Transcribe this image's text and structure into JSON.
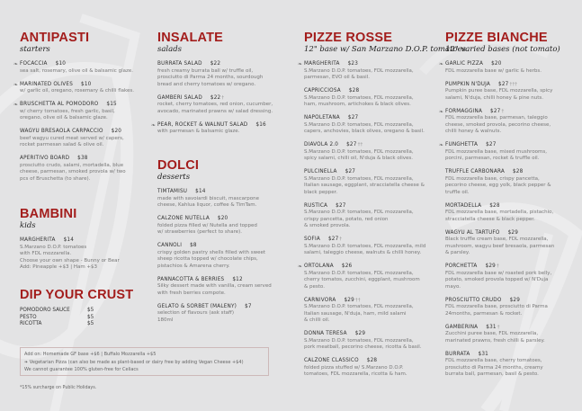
{
  "colors": {
    "accent": "#a31d1c",
    "background": "#e3e3e4",
    "text": "#333333",
    "muted": "#777777"
  },
  "icons": {
    "vegetarian": "leaf-icon",
    "spicy": "chilli-icon"
  },
  "sections": [
    {
      "id": "antipasti",
      "title": "ANTIPASTI",
      "subtitle": "starters",
      "items": [
        {
          "name": "FOCACCIA",
          "price": "$10",
          "veg": true,
          "chilli": 0,
          "desc": [
            "sea salt, rosemary, olive oil & balsamic glaze."
          ]
        },
        {
          "name": "MARINATED OLIVES",
          "price": "$10",
          "veg": true,
          "chilli": 0,
          "desc": [
            "w/ garlic oil, oregano, rosemary & chilli flakes."
          ]
        },
        {
          "name": "BRUSCHETTA AL POMODORO",
          "price": "$15",
          "veg": true,
          "chilli": 0,
          "desc": [
            "w/ cherry tomatoes, fresh garlic, basil,",
            "oregano, olive oil & balsamic glaze."
          ]
        },
        {
          "name": "WAGYU BRESAOLA CARPACCIO",
          "price": "$20",
          "veg": false,
          "chilli": 0,
          "desc": [
            "beef wagyu cured meat served w/ capers,",
            "rocket parmesan salad & olive oil."
          ]
        },
        {
          "name": "APERITIVO BOARD",
          "price": "$38",
          "veg": false,
          "chilli": 0,
          "desc": [
            "prosciutto crudo, salami, mortadella, blue",
            "cheese, parmesan, smoked provola w/ two",
            "pcs of Bruschetta (to share)."
          ]
        }
      ]
    },
    {
      "id": "bambini",
      "title": "BAMBINI",
      "subtitle": "kids",
      "items": [
        {
          "name": "MARGHERITA",
          "price": "$14",
          "veg": false,
          "chilli": 0,
          "desc": [
            "S.Marzano D.O.P. tomatoes",
            "with FDL mozzarella.",
            "Choose your own shape - Bunny or Bear",
            "Add: Pineapple +$3 | Ham +$3"
          ]
        }
      ]
    },
    {
      "id": "insalate",
      "title": "INSALATE",
      "subtitle": "salads",
      "items": [
        {
          "name": "BURRATA SALAD",
          "price": "$22",
          "veg": false,
          "chilli": 0,
          "desc": [
            "fresh creamy burrata ball w/ truffle oil,",
            "prosciutto di Parma 24 months, sourdough",
            "bread and cherry tomatoes w/ oregano."
          ]
        },
        {
          "name": "GAMBERI SALAD",
          "price": "$22",
          "veg": false,
          "chilli": 1,
          "desc": [
            "rocket, cherry tomatoes, red onion, cucumber,",
            "avocado, marinated prawns w/ salad dressing."
          ]
        },
        {
          "name": "PEAR, ROCKET & WALNUT SALAD",
          "price": "$16",
          "veg": true,
          "chilli": 0,
          "desc": [
            "with parmesan & balsamic glaze."
          ]
        }
      ]
    },
    {
      "id": "dolci",
      "title": "DOLCI",
      "subtitle": "desserts",
      "items": [
        {
          "name": "TIMTAMISU",
          "price": "$14",
          "veg": false,
          "chilli": 0,
          "desc": [
            "made with savoiardi biscuit, mascarpone",
            "cheese, Kahlua liquor, coffee & TimTam."
          ]
        },
        {
          "name": "CALZONE NUTELLA",
          "price": "$20",
          "veg": false,
          "chilli": 0,
          "desc": [
            "folded pizza filled w/ Nutella and topped",
            "w/ strawberries (perfect to share)."
          ]
        },
        {
          "name": "CANNOLI",
          "price": "$8",
          "veg": false,
          "chilli": 0,
          "desc": [
            "crispy golden pastry shells filled with sweet",
            "sheep ricotta topped w/ chocolate chips,",
            "pistachios & Amarena cherry."
          ]
        },
        {
          "name": "PANNACOTTA & BERRIES",
          "price": "$12",
          "veg": false,
          "chilli": 0,
          "desc": [
            "Silky dessert made with vanilla, cream served",
            "with fresh berries compote."
          ]
        },
        {
          "name": "GELATO & SORBET (MALENY)",
          "price": "$7",
          "veg": false,
          "chilli": 0,
          "desc": [
            "selection of flavours (ask staff)",
            "180ml"
          ]
        }
      ]
    },
    {
      "id": "rosse",
      "title": "PIZZE ROSSE",
      "subtitle": "12\" base w/ San Marzano D.O.P. tomatoes",
      "items": [
        {
          "name": "MARGHERITA",
          "price": "$23",
          "veg": true,
          "chilli": 0,
          "desc": [
            "S.Marzano D.O.P. tomatoes, FDL mozzarella,",
            "parmesan, EVO oil & basil."
          ]
        },
        {
          "name": "CAPRICCIOSA",
          "price": "$28",
          "veg": false,
          "chilli": 0,
          "desc": [
            "S.Marzano D.O.P. tomatoes, FDL mozzarella,",
            "ham, mushroom, artichokes & black olives."
          ]
        },
        {
          "name": "NAPOLETANA",
          "price": "$27",
          "veg": false,
          "chilli": 0,
          "desc": [
            "S.Marzano D.O.P. tomatoes, FDL mozzarella,",
            "capers, anchovies, black olives, oregano & basil."
          ]
        },
        {
          "name": "DIAVOLA 2.0",
          "price": "$27",
          "veg": false,
          "chilli": 2,
          "desc": [
            "S.Marzano D.O.P. tomatoes, FDL mozzarella,",
            "spicy salami, chilli oil, N'duja & black olives."
          ]
        },
        {
          "name": "PULCINELLA",
          "price": "$27",
          "veg": false,
          "chilli": 0,
          "desc": [
            "S.Marzano D.O.P. tomatoes, FDL mozzarella,",
            "Italian sausage, eggplant, stracciatella cheese &",
            "black pepper."
          ]
        },
        {
          "name": "RUSTICA",
          "price": "$27",
          "veg": false,
          "chilli": 0,
          "desc": [
            "S.Marzano D.O.P. tomatoes, FDL mozzarella,",
            "crispy pancetta, potato, red onion",
            "& smoked provola."
          ]
        },
        {
          "name": "SOFIA",
          "price": "$27",
          "veg": false,
          "chilli": 1,
          "desc": [
            "S.Marzano D.O.P. tomatoes, FDL mozzarella, mild",
            "salami, taleggio cheese, walnuts & chilli honey."
          ]
        },
        {
          "name": "ORTOLANA",
          "price": "$26",
          "veg": true,
          "chilli": 0,
          "desc": [
            "S.Marzano D.O.P. tomatoes, FDL mozzarella,",
            "cherry tomatos, zucchini, eggplant, mushroom",
            "& pesto."
          ]
        },
        {
          "name": "CARNIVORA",
          "price": "$29",
          "veg": false,
          "chilli": 2,
          "desc": [
            "S.Marzano D.O.P. tomatoes, FDL mozzarella,",
            "Italian sausage, N'duja, ham, mild salami",
            "& chilli oil."
          ]
        },
        {
          "name": "DONNA TERESA",
          "price": "$29",
          "veg": false,
          "chilli": 0,
          "desc": [
            "S.Marzano D.O.P. tomatoes, FDL mozzarella,",
            "pork meatball, pecorino cheese, ricotta & basil."
          ]
        },
        {
          "name": "CALZONE CLASSICO",
          "price": "$28",
          "veg": false,
          "chilli": 0,
          "desc": [
            "folded pizza stuffed w/ S.Marzano D.O.P.",
            "tomatoes, FDL mozzarella, ricotta & ham."
          ]
        }
      ]
    },
    {
      "id": "bianche",
      "title": "PIZZE BIANCHE",
      "subtitle": "12\" varied bases (not tomato)",
      "items": [
        {
          "name": "GARLIC PIZZA",
          "price": "$20",
          "veg": true,
          "chilli": 0,
          "desc": [
            "FDL mozzarella base w/ garlic & herbs."
          ]
        },
        {
          "name": "PUMPKIN N'DUJA",
          "price": "$27",
          "veg": false,
          "chilli": 3,
          "desc": [
            "Pumpkin puree base, FDL mozzarella, spicy",
            "salami, N'duja, chilli honey & pine nuts."
          ]
        },
        {
          "name": "FORMAGGINA",
          "price": "$27",
          "veg": true,
          "chilli": 1,
          "desc": [
            "FDL mozzarella base, parmesan, taleggio",
            "cheese, smoked provola, pecorino cheese,",
            "chilli honey & walnuts."
          ]
        },
        {
          "name": "FUNGHETTA",
          "price": "$27",
          "veg": true,
          "chilli": 0,
          "desc": [
            "FDL mozzarella base, mixed mushrooms,",
            "porcini, parmesan, rocket & truffle oil."
          ]
        },
        {
          "name": "TRUFFLE CARBONARA",
          "price": "$28",
          "veg": false,
          "chilli": 0,
          "desc": [
            "FDL mozzarella base, crispy pancetta,",
            "pecorino cheese, egg yolk, black pepper &",
            "truffle oil."
          ]
        },
        {
          "name": "MORTADELLA",
          "price": "$28",
          "veg": false,
          "chilli": 0,
          "desc": [
            "FDL mozzarella base, mortadella, pistachio,",
            "stracciatella cheese & black pepper."
          ]
        },
        {
          "name": "WAGYU AL TARTUFO",
          "price": "$29",
          "veg": false,
          "chilli": 0,
          "desc": [
            "Black truffle cream base, FDL mozzarella,",
            "mushroom, wagyu beef bresaola, parmesan",
            "& parsley."
          ]
        },
        {
          "name": "PORCHETTA",
          "price": "$29",
          "veg": false,
          "chilli": 1,
          "desc": [
            "FDL mozzarella base w/ roasted pork belly,",
            "potato, smoked  provola topped w/ N'Duja",
            "mayo."
          ]
        },
        {
          "name": "PROSCIUTTO CRUDO",
          "price": "$29",
          "veg": false,
          "chilli": 0,
          "desc": [
            "FDL mozzarella base, prosciutto di Parma",
            "24months, parmesan & rocket."
          ]
        },
        {
          "name": "GAMBERINA",
          "price": "$31",
          "veg": false,
          "chilli": 1,
          "desc": [
            "Zucchini puree base, FDL mozzarella,",
            "marinated prawns, fresh chilli & parsley."
          ]
        },
        {
          "name": "BURRATA",
          "price": "$31",
          "veg": false,
          "chilli": 0,
          "desc": [
            "FDL mozzarella base, cherry tomatoes,",
            "prosciutto di Parma 24 months, creamy",
            "burrata ball, parmesan, basil & pesto."
          ]
        }
      ]
    }
  ],
  "dip": {
    "title": "DIP YOUR CRUST",
    "items": [
      {
        "name": "POMODORO SAUCE",
        "price": "$5"
      },
      {
        "name": "PESTO",
        "price": "$5"
      },
      {
        "name": "RICOTTA",
        "price": "$5"
      }
    ]
  },
  "notes": {
    "addon": "Add on: Homemade GF base +$6 | Buffalo Mozzarella +$5",
    "vegetarian": "Vegetarian Pizza (can also be made as plant-based or dairy free by adding Vegan Cheese +$4)",
    "gluten": "We cannot guarantee 100% gluten-free for Celiacs",
    "surcharge": "*15% surcharge on Public Holidays."
  }
}
